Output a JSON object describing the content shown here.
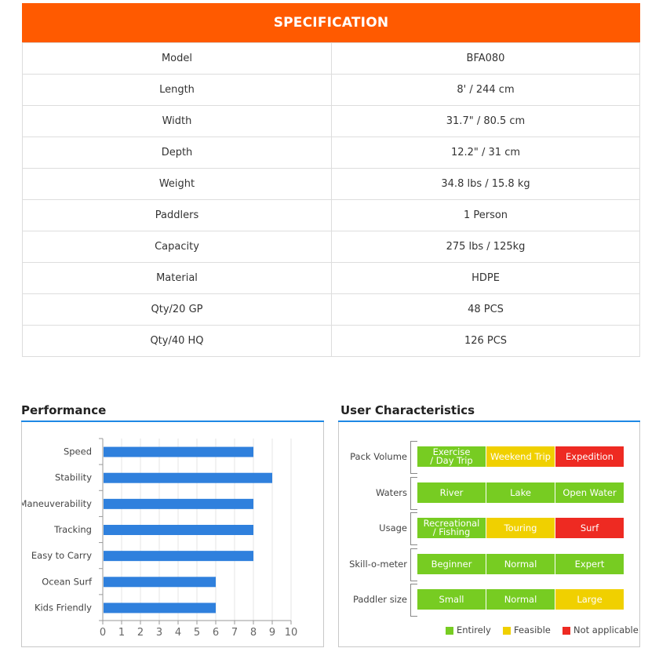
{
  "spec": {
    "title": "SPECIFICATION",
    "rows": [
      {
        "label": "Model",
        "value": "BFA080"
      },
      {
        "label": "Length",
        "value": "8' / 244 cm"
      },
      {
        "label": "Width",
        "value": "31.7\" / 80.5 cm"
      },
      {
        "label": "Depth",
        "value": "12.2\" / 31 cm"
      },
      {
        "label": "Weight",
        "value": "34.8 lbs / 15.8 kg"
      },
      {
        "label": "Paddlers",
        "value": "1 Person"
      },
      {
        "label": "Capacity",
        "value": "275 lbs / 125kg"
      },
      {
        "label": "Material",
        "value": "HDPE"
      },
      {
        "label": "Qty/20 GP",
        "value": "48 PCS"
      },
      {
        "label": "Qty/40 HQ",
        "value": "126 PCS"
      }
    ]
  },
  "performance": {
    "title": "Performance"
  },
  "user_characteristics": {
    "title": "User Characteristics",
    "rows": [
      {
        "label": "Pack Volume",
        "cells": [
          {
            "text": "Exercise\n/ Day Trip",
            "level": "entirely"
          },
          {
            "text": "Weekend Trip",
            "level": "feasible"
          },
          {
            "text": "Expedition",
            "level": "na"
          }
        ]
      },
      {
        "label": "Waters",
        "cells": [
          {
            "text": "River",
            "level": "entirely"
          },
          {
            "text": "Lake",
            "level": "entirely"
          },
          {
            "text": "Open Water",
            "level": "entirely"
          }
        ]
      },
      {
        "label": "Usage",
        "cells": [
          {
            "text": "Recreational\n/ Fishing",
            "level": "entirely"
          },
          {
            "text": "Touring",
            "level": "feasible"
          },
          {
            "text": "Surf",
            "level": "na"
          }
        ]
      },
      {
        "label": "Skill-o-meter",
        "cells": [
          {
            "text": "Beginner",
            "level": "entirely"
          },
          {
            "text": "Normal",
            "level": "entirely"
          },
          {
            "text": "Expert",
            "level": "entirely"
          }
        ]
      },
      {
        "label": "Paddler size",
        "cells": [
          {
            "text": "Small",
            "level": "entirely"
          },
          {
            "text": "Normal",
            "level": "entirely"
          },
          {
            "text": "Large",
            "level": "feasible"
          }
        ]
      }
    ],
    "legend": [
      {
        "key": "entirely",
        "label": "Entirely",
        "color": "#77cc22"
      },
      {
        "key": "feasible",
        "label": "Feasible",
        "color": "#f0d000"
      },
      {
        "key": "na",
        "label": "Not applicable",
        "color": "#ee2a22"
      }
    ]
  },
  "colors": {
    "header": "#ff5a00",
    "bar": "#2f80dd",
    "accent_line": "#1e88e5"
  },
  "chart_data": {
    "type": "bar",
    "orientation": "horizontal",
    "categories": [
      "Speed",
      "Stability",
      "Maneuverability",
      "Tracking",
      "Easy to Carry",
      "Ocean Surf",
      "Kids Friendly"
    ],
    "values": [
      8,
      9,
      8,
      8,
      8,
      6,
      6
    ],
    "xlim": [
      0,
      10
    ],
    "xticks": [
      0,
      1,
      2,
      3,
      4,
      5,
      6,
      7,
      8,
      9,
      10
    ],
    "grid": "vertical",
    "title": "Performance"
  }
}
